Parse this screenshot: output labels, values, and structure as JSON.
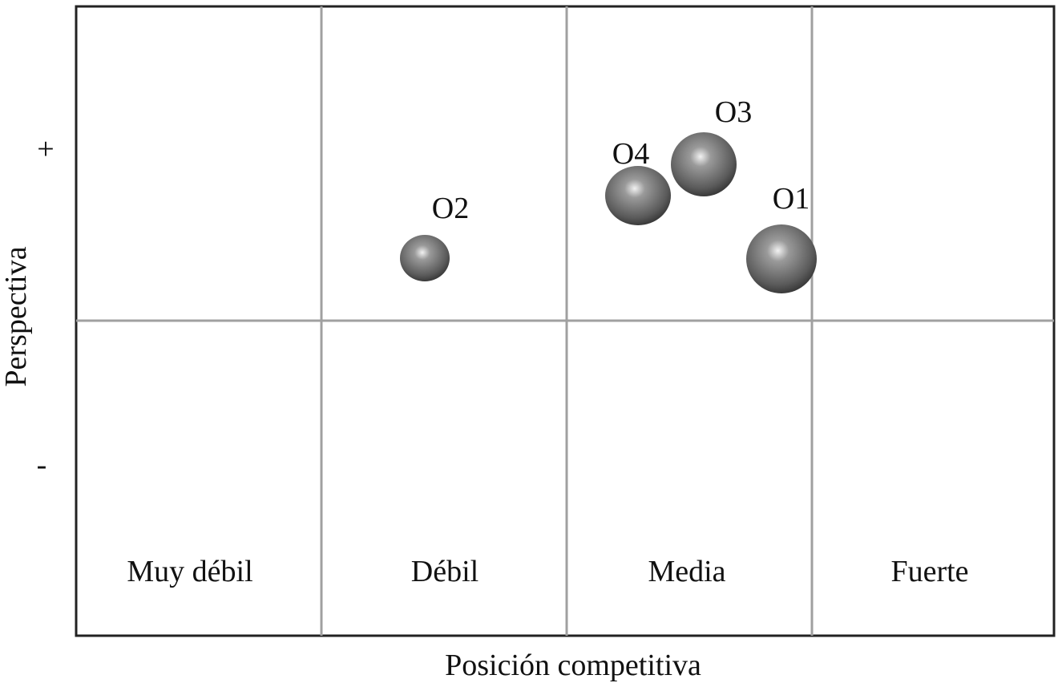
{
  "axes": {
    "x_label": "Posición competitiva",
    "y_label": "Perspectiva",
    "y_top": "+",
    "y_bottom": "-"
  },
  "columns": [
    "Muy débil",
    "Débil",
    "Media",
    "Fuerte"
  ],
  "nodes": [
    {
      "label": "O1"
    },
    {
      "label": "O2"
    },
    {
      "label": "O3"
    },
    {
      "label": "O4"
    }
  ]
}
